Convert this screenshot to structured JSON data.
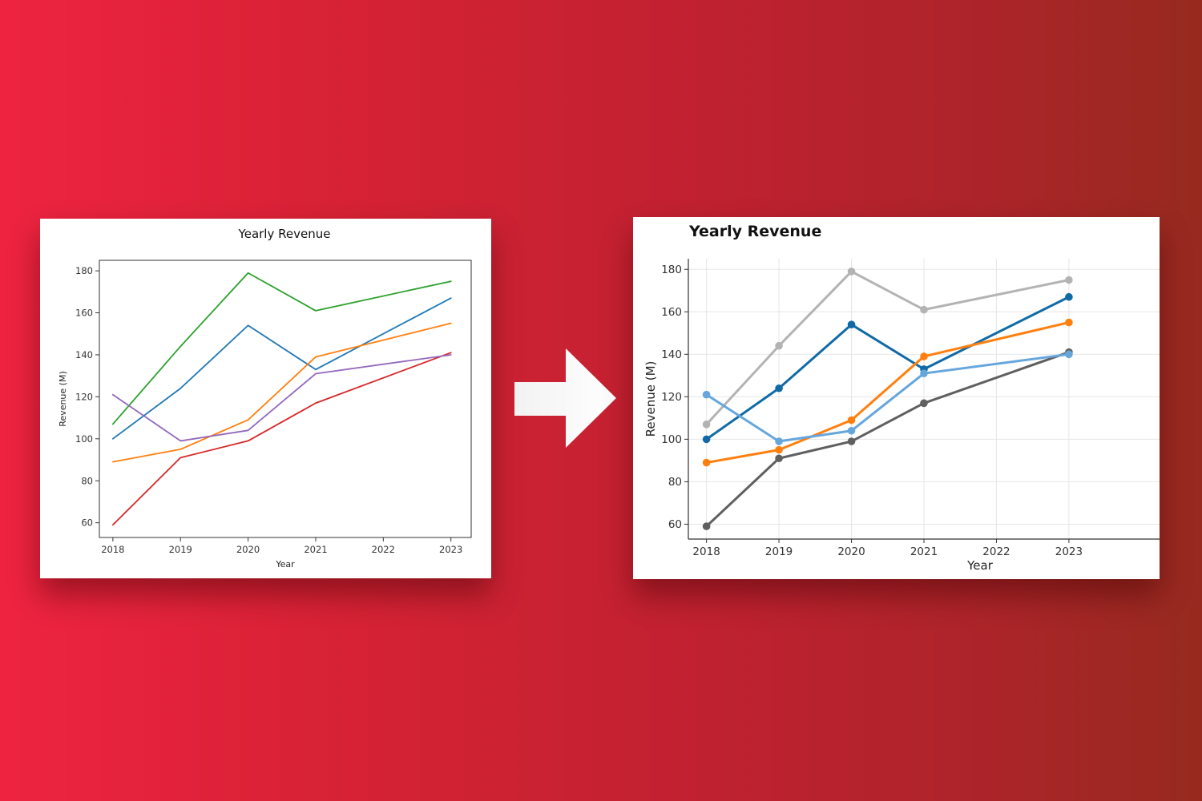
{
  "chart_data": [
    {
      "type": "line",
      "title": "Yearly Revenue",
      "xlabel": "Year",
      "ylabel": "Revenue (M)",
      "x": [
        2018,
        2019,
        2020,
        2021,
        2022,
        2023
      ],
      "xticks": [
        "2018",
        "2019",
        "2020",
        "2021",
        "2022",
        "2023"
      ],
      "yticks": [
        60,
        80,
        100,
        120,
        140,
        160,
        180
      ],
      "xlim": [
        2017.8,
        2023.3
      ],
      "ylim": [
        53,
        185
      ],
      "grid": false,
      "markers": false,
      "series": [
        {
          "x": [
            2018,
            2019,
            2020,
            2021,
            2023
          ],
          "values": [
            100,
            124,
            154,
            133,
            167
          ],
          "color": "#1f77b4"
        },
        {
          "x": [
            2018,
            2019,
            2020,
            2021,
            2023
          ],
          "values": [
            89,
            95,
            109,
            139,
            155
          ],
          "color": "#ff7f0e"
        },
        {
          "x": [
            2018,
            2019,
            2020,
            2021,
            2023
          ],
          "values": [
            107,
            144,
            179,
            161,
            175
          ],
          "color": "#2ca02c"
        },
        {
          "x": [
            2018,
            2019,
            2020,
            2021,
            2023
          ],
          "values": [
            59,
            91,
            99,
            117,
            141
          ],
          "color": "#d62728"
        },
        {
          "x": [
            2018,
            2019,
            2020,
            2021,
            2023
          ],
          "values": [
            121,
            99,
            104,
            131,
            140
          ],
          "color": "#9467bd"
        }
      ]
    },
    {
      "type": "line",
      "title": "Yearly Revenue",
      "xlabel": "Year",
      "ylabel": "Revenue (M)",
      "x": [
        2018,
        2019,
        2020,
        2021,
        2022,
        2023
      ],
      "xticks": [
        "2018",
        "2019",
        "2020",
        "2021",
        "2022",
        "2023"
      ],
      "yticks": [
        60,
        80,
        100,
        120,
        140,
        160,
        180
      ],
      "xlim": [
        2017.75,
        2024.25
      ],
      "ylim": [
        53,
        185
      ],
      "grid": true,
      "markers": true,
      "series": [
        {
          "x": [
            2018,
            2019,
            2020,
            2021,
            2023
          ],
          "values": [
            100,
            124,
            154,
            133,
            167
          ],
          "color": "#0f6aa6"
        },
        {
          "x": [
            2018,
            2019,
            2020,
            2021,
            2023
          ],
          "values": [
            89,
            95,
            109,
            139,
            155
          ],
          "color": "#ff7f0e"
        },
        {
          "x": [
            2018,
            2019,
            2020,
            2021,
            2023
          ],
          "values": [
            107,
            144,
            179,
            161,
            175
          ],
          "color": "#b3b3b3"
        },
        {
          "x": [
            2018,
            2019,
            2020,
            2021,
            2023
          ],
          "values": [
            59,
            91,
            99,
            117,
            141
          ],
          "color": "#5f5f5f"
        },
        {
          "x": [
            2018,
            2019,
            2020,
            2021,
            2023
          ],
          "values": [
            121,
            99,
            104,
            131,
            140
          ],
          "color": "#65a6dc"
        }
      ]
    }
  ],
  "colors": {
    "arrow": "#ffffff",
    "left_axis": "#333333",
    "right_axis": "#333333",
    "grid": "#e6e6e6"
  },
  "icons": {
    "arrow": "right-arrow-icon"
  }
}
